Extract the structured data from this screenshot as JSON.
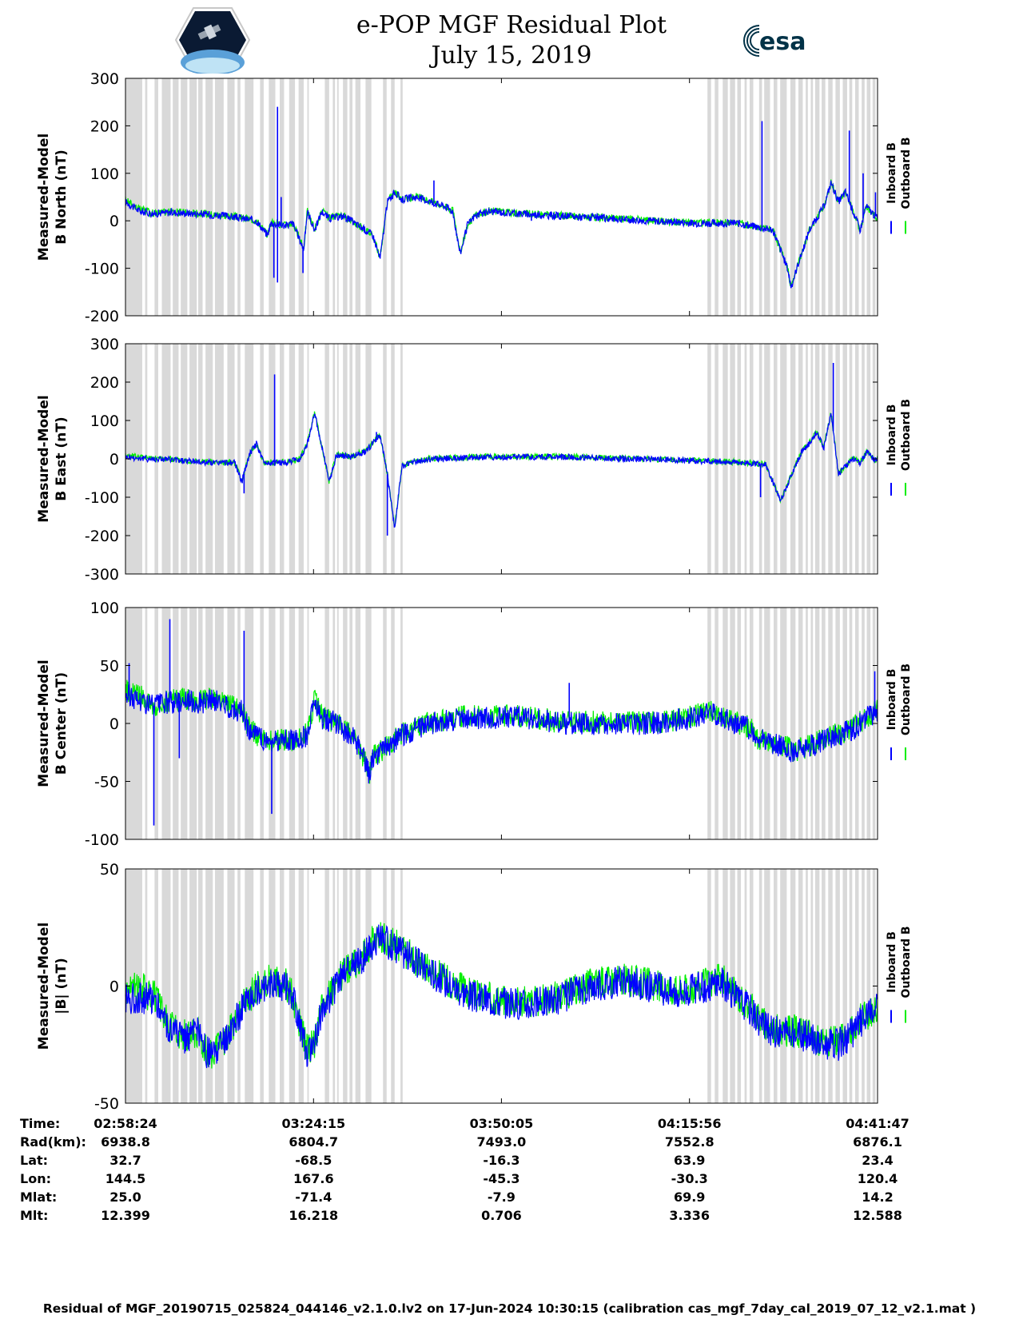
{
  "header": {
    "title_line1": "e-POP MGF Residual Plot",
    "title_line2": "July 15, 2019",
    "left_logo": "cassiope-mission-logo",
    "right_logo_text": "esa",
    "colors": {
      "esa": "#003247"
    }
  },
  "colors": {
    "inboard": "#0000ff",
    "outboard": "#00ee00",
    "gaps": "#d9d9d9",
    "axis": "#000000"
  },
  "time_ticks": [
    "02:58:24",
    "03:24:15",
    "03:50:05",
    "04:15:56",
    "04:41:47"
  ],
  "chart_data": [
    {
      "type": "line",
      "ylabel_line1": "Measured-Model",
      "ylabel_line2": "B North (nT)",
      "ylim": [
        -200,
        300
      ],
      "yticks": [
        300,
        200,
        100,
        0,
        -100,
        -200
      ],
      "x_range_minutes": [
        0,
        103.38
      ],
      "series": [
        {
          "name": "Inboard B",
          "color": "#0000ff"
        },
        {
          "name": "Outboard B",
          "color": "#00ee00"
        }
      ],
      "points": [
        [
          0,
          40
        ],
        [
          2,
          20
        ],
        [
          4,
          15
        ],
        [
          6,
          18
        ],
        [
          10,
          15
        ],
        [
          14,
          10
        ],
        [
          16,
          5
        ],
        [
          18,
          0
        ],
        [
          19.5,
          -30
        ],
        [
          20,
          -5
        ],
        [
          22,
          -10
        ],
        [
          23,
          -5
        ],
        [
          24.5,
          -60
        ],
        [
          25,
          20
        ],
        [
          26,
          -20
        ],
        [
          27,
          20
        ],
        [
          28,
          5
        ],
        [
          30,
          10
        ],
        [
          32,
          -10
        ],
        [
          34,
          -30
        ],
        [
          35,
          -80
        ],
        [
          36,
          40
        ],
        [
          37,
          60
        ],
        [
          38,
          45
        ],
        [
          40,
          50
        ],
        [
          42,
          40
        ],
        [
          44,
          30
        ],
        [
          45,
          20
        ],
        [
          46,
          -70
        ],
        [
          47,
          -10
        ],
        [
          48,
          10
        ],
        [
          50,
          20
        ],
        [
          54,
          15
        ],
        [
          60,
          10
        ],
        [
          66,
          5
        ],
        [
          72,
          0
        ],
        [
          78,
          -5
        ],
        [
          84,
          -5
        ],
        [
          89,
          -20
        ],
        [
          91,
          -100
        ],
        [
          91.5,
          -140
        ],
        [
          92.5,
          -90
        ],
        [
          94,
          -20
        ],
        [
          96,
          30
        ],
        [
          97,
          80
        ],
        [
          98,
          40
        ],
        [
          99,
          60
        ],
        [
          100,
          20
        ],
        [
          101,
          -20
        ],
        [
          101.8,
          30
        ],
        [
          103.38,
          5
        ]
      ],
      "spikes": [
        [
          20.4,
          -120
        ],
        [
          20.9,
          240
        ],
        [
          20.9,
          -130
        ],
        [
          42.4,
          85
        ],
        [
          55.8,
          0
        ],
        [
          87.5,
          210
        ],
        [
          99.5,
          190
        ],
        [
          103.1,
          60
        ],
        [
          101.4,
          100
        ],
        [
          24.4,
          -110
        ],
        [
          21.4,
          50
        ]
      ]
    },
    {
      "type": "line",
      "ylabel_line1": "Measured-Model",
      "ylabel_line2": "B East (nT)",
      "ylim": [
        -300,
        300
      ],
      "yticks": [
        300,
        200,
        100,
        0,
        -100,
        -200,
        -300
      ],
      "x_range_minutes": [
        0,
        103.38
      ],
      "series": [
        {
          "name": "Inboard B",
          "color": "#0000ff"
        },
        {
          "name": "Outboard B",
          "color": "#00ee00"
        }
      ],
      "points": [
        [
          0,
          5
        ],
        [
          3,
          0
        ],
        [
          5,
          0
        ],
        [
          8,
          -5
        ],
        [
          12,
          -10
        ],
        [
          15,
          -10
        ],
        [
          16,
          -60
        ],
        [
          17,
          10
        ],
        [
          18,
          40
        ],
        [
          19,
          -10
        ],
        [
          22,
          -10
        ],
        [
          24,
          0
        ],
        [
          25,
          40
        ],
        [
          26,
          120
        ],
        [
          27,
          30
        ],
        [
          28,
          -60
        ],
        [
          29,
          10
        ],
        [
          31,
          5
        ],
        [
          33,
          20
        ],
        [
          34,
          40
        ],
        [
          35,
          60
        ],
        [
          36,
          -40
        ],
        [
          37,
          -180
        ],
        [
          38,
          -20
        ],
        [
          39,
          -10
        ],
        [
          42,
          0
        ],
        [
          50,
          5
        ],
        [
          60,
          5
        ],
        [
          70,
          0
        ],
        [
          78,
          -5
        ],
        [
          85,
          -10
        ],
        [
          88,
          -15
        ],
        [
          89,
          -60
        ],
        [
          90,
          -110
        ],
        [
          91,
          -70
        ],
        [
          92,
          -20
        ],
        [
          93,
          20
        ],
        [
          94,
          40
        ],
        [
          95,
          70
        ],
        [
          96,
          30
        ],
        [
          97,
          120
        ],
        [
          98,
          -40
        ],
        [
          99,
          -20
        ],
        [
          100,
          0
        ],
        [
          101,
          -10
        ],
        [
          102,
          20
        ],
        [
          103,
          -5
        ],
        [
          103.38,
          0
        ]
      ],
      "spikes": [
        [
          20.5,
          220
        ],
        [
          34.5,
          70
        ],
        [
          36,
          -200
        ],
        [
          87.3,
          -100
        ],
        [
          97.3,
          250
        ],
        [
          16.3,
          -90
        ]
      ]
    },
    {
      "type": "line",
      "ylabel_line1": "Measured-Model",
      "ylabel_line2": "B Center (nT)",
      "ylim": [
        -100,
        100
      ],
      "yticks": [
        100,
        50,
        0,
        -50,
        -100
      ],
      "x_range_minutes": [
        0,
        103.38
      ],
      "series": [
        {
          "name": "Inboard B",
          "color": "#0000ff"
        },
        {
          "name": "Outboard B",
          "color": "#00ee00"
        }
      ],
      "points": [
        [
          0,
          25
        ],
        [
          2,
          20
        ],
        [
          4,
          15
        ],
        [
          6,
          18
        ],
        [
          8,
          20
        ],
        [
          10,
          18
        ],
        [
          12,
          20
        ],
        [
          14,
          15
        ],
        [
          16,
          10
        ],
        [
          17,
          -5
        ],
        [
          19,
          -15
        ],
        [
          21,
          -15
        ],
        [
          23,
          -15
        ],
        [
          25,
          -10
        ],
        [
          26,
          20
        ],
        [
          27,
          5
        ],
        [
          29,
          0
        ],
        [
          31,
          -10
        ],
        [
          32,
          -20
        ],
        [
          33,
          -35
        ],
        [
          33.5,
          -45
        ],
        [
          34,
          -30
        ],
        [
          36,
          -20
        ],
        [
          38,
          -10
        ],
        [
          40,
          -5
        ],
        [
          42,
          0
        ],
        [
          46,
          5
        ],
        [
          50,
          5
        ],
        [
          55,
          5
        ],
        [
          60,
          0
        ],
        [
          65,
          0
        ],
        [
          70,
          0
        ],
        [
          74,
          0
        ],
        [
          78,
          5
        ],
        [
          80,
          10
        ],
        [
          82,
          5
        ],
        [
          84,
          0
        ],
        [
          86,
          -5
        ],
        [
          86.5,
          -15
        ],
        [
          88,
          -15
        ],
        [
          90,
          -20
        ],
        [
          92,
          -25
        ],
        [
          94,
          -20
        ],
        [
          96,
          -15
        ],
        [
          98,
          -10
        ],
        [
          100,
          -5
        ],
        [
          102,
          5
        ],
        [
          103.38,
          10
        ]
      ],
      "spikes": [
        [
          3.9,
          -88
        ],
        [
          6.1,
          90
        ],
        [
          16.3,
          80
        ],
        [
          20.1,
          -78
        ],
        [
          7.4,
          -30
        ],
        [
          61,
          35
        ],
        [
          103,
          45
        ],
        [
          0.5,
          52
        ]
      ]
    },
    {
      "type": "line",
      "ylabel_line1": "Measured-Model",
      "ylabel_line2": "|B| (nT)",
      "ylim": [
        -50,
        50
      ],
      "yticks": [
        50,
        0,
        -50
      ],
      "x_range_minutes": [
        0,
        103.38
      ],
      "series": [
        {
          "name": "Inboard B",
          "color": "#0000ff"
        },
        {
          "name": "Outboard B",
          "color": "#00ee00"
        }
      ],
      "points": [
        [
          0,
          -5
        ],
        [
          2,
          -5
        ],
        [
          4,
          -5
        ],
        [
          6,
          -18
        ],
        [
          8,
          -22
        ],
        [
          10,
          -20
        ],
        [
          11,
          -28
        ],
        [
          12,
          -30
        ],
        [
          14,
          -22
        ],
        [
          16,
          -10
        ],
        [
          18,
          -2
        ],
        [
          20,
          2
        ],
        [
          22,
          0
        ],
        [
          23,
          -5
        ],
        [
          24,
          -18
        ],
        [
          25,
          -28
        ],
        [
          26,
          -25
        ],
        [
          27,
          -10
        ],
        [
          28,
          -5
        ],
        [
          30,
          5
        ],
        [
          32,
          10
        ],
        [
          34,
          18
        ],
        [
          35,
          20
        ],
        [
          37,
          17
        ],
        [
          40,
          10
        ],
        [
          45,
          0
        ],
        [
          48,
          -5
        ],
        [
          52,
          -7
        ],
        [
          56,
          -8
        ],
        [
          60,
          -5
        ],
        [
          64,
          0
        ],
        [
          68,
          2
        ],
        [
          72,
          0
        ],
        [
          76,
          -3
        ],
        [
          80,
          0
        ],
        [
          82,
          2
        ],
        [
          84,
          -5
        ],
        [
          86,
          -10
        ],
        [
          88,
          -18
        ],
        [
          90,
          -20
        ],
        [
          92,
          -20
        ],
        [
          94,
          -22
        ],
        [
          96,
          -25
        ],
        [
          98,
          -25
        ],
        [
          100,
          -20
        ],
        [
          101,
          -15
        ],
        [
          103.38,
          -10
        ]
      ],
      "spikes": []
    }
  ],
  "gap_intervals": [
    [
      0,
      2.3
    ],
    [
      2.7,
      3
    ],
    [
      4,
      4.5
    ],
    [
      5,
      6.2
    ],
    [
      6.5,
      7.3
    ],
    [
      7.6,
      8.5
    ],
    [
      8.8,
      9.8
    ],
    [
      10,
      10.6
    ],
    [
      11,
      12
    ],
    [
      12.3,
      13.5
    ],
    [
      14,
      15
    ],
    [
      15.4,
      15.8
    ],
    [
      16.4,
      17.6
    ],
    [
      18.5,
      19
    ],
    [
      19.7,
      20.6
    ],
    [
      21.2,
      21.8
    ],
    [
      22.5,
      23.3
    ],
    [
      23.8,
      24.5
    ],
    [
      25,
      25.2
    ],
    [
      27.4,
      28
    ],
    [
      28.5,
      28.8
    ],
    [
      29.1,
      29.3
    ],
    [
      29.9,
      30.5
    ],
    [
      30.8,
      31.2
    ],
    [
      31.6,
      32.3
    ],
    [
      33,
      33.8
    ],
    [
      35.4,
      35.9
    ],
    [
      36.5,
      37
    ],
    [
      37.8,
      38.1
    ],
    [
      80,
      80.5
    ],
    [
      81,
      81.5
    ],
    [
      82.1,
      82.8
    ],
    [
      83.1,
      83.8
    ],
    [
      84.1,
      84.6
    ],
    [
      85.1,
      85.4
    ],
    [
      85.8,
      86.3
    ],
    [
      87.1,
      87.5
    ],
    [
      87.8,
      88.6
    ],
    [
      89.1,
      89.6
    ],
    [
      90,
      90.9
    ],
    [
      91.4,
      92.1
    ],
    [
      92.5,
      93.1
    ],
    [
      93.5,
      93.8
    ],
    [
      94.2,
      94.5
    ],
    [
      94.8,
      95.4
    ],
    [
      95.7,
      96.2
    ],
    [
      96.6,
      97.2
    ],
    [
      97.6,
      98.2
    ],
    [
      98.6,
      99.2
    ],
    [
      99.5,
      99.9
    ],
    [
      100.3,
      100.8
    ],
    [
      101.2,
      101.6
    ],
    [
      101.9,
      102.4
    ],
    [
      102.7,
      103.1
    ]
  ],
  "table": {
    "rows": [
      {
        "label": "Time:",
        "values": [
          "02:58:24",
          "03:24:15",
          "03:50:05",
          "04:15:56",
          "04:41:47"
        ]
      },
      {
        "label": "Rad(km):",
        "values": [
          "6938.8",
          "6804.7",
          "7493.0",
          "7552.8",
          "6876.1"
        ]
      },
      {
        "label": "Lat:",
        "values": [
          "32.7",
          "-68.5",
          "-16.3",
          "63.9",
          "23.4"
        ]
      },
      {
        "label": "Lon:",
        "values": [
          "144.5",
          "167.6",
          "-45.3",
          "-30.3",
          "120.4"
        ]
      },
      {
        "label": "Mlat:",
        "values": [
          "25.0",
          "-71.4",
          "-7.9",
          "69.9",
          "14.2"
        ]
      },
      {
        "label": "Mlt:",
        "values": [
          "12.399",
          "16.218",
          "0.706",
          "3.336",
          "12.588"
        ]
      }
    ]
  },
  "footer": "Residual of MGF_20190715_025824_044146_v2.1.0.lv2 on 17-Jun-2024 10:30:15 (calibration cas_mgf_7day_cal_2019_07_12_v2.1.mat )"
}
